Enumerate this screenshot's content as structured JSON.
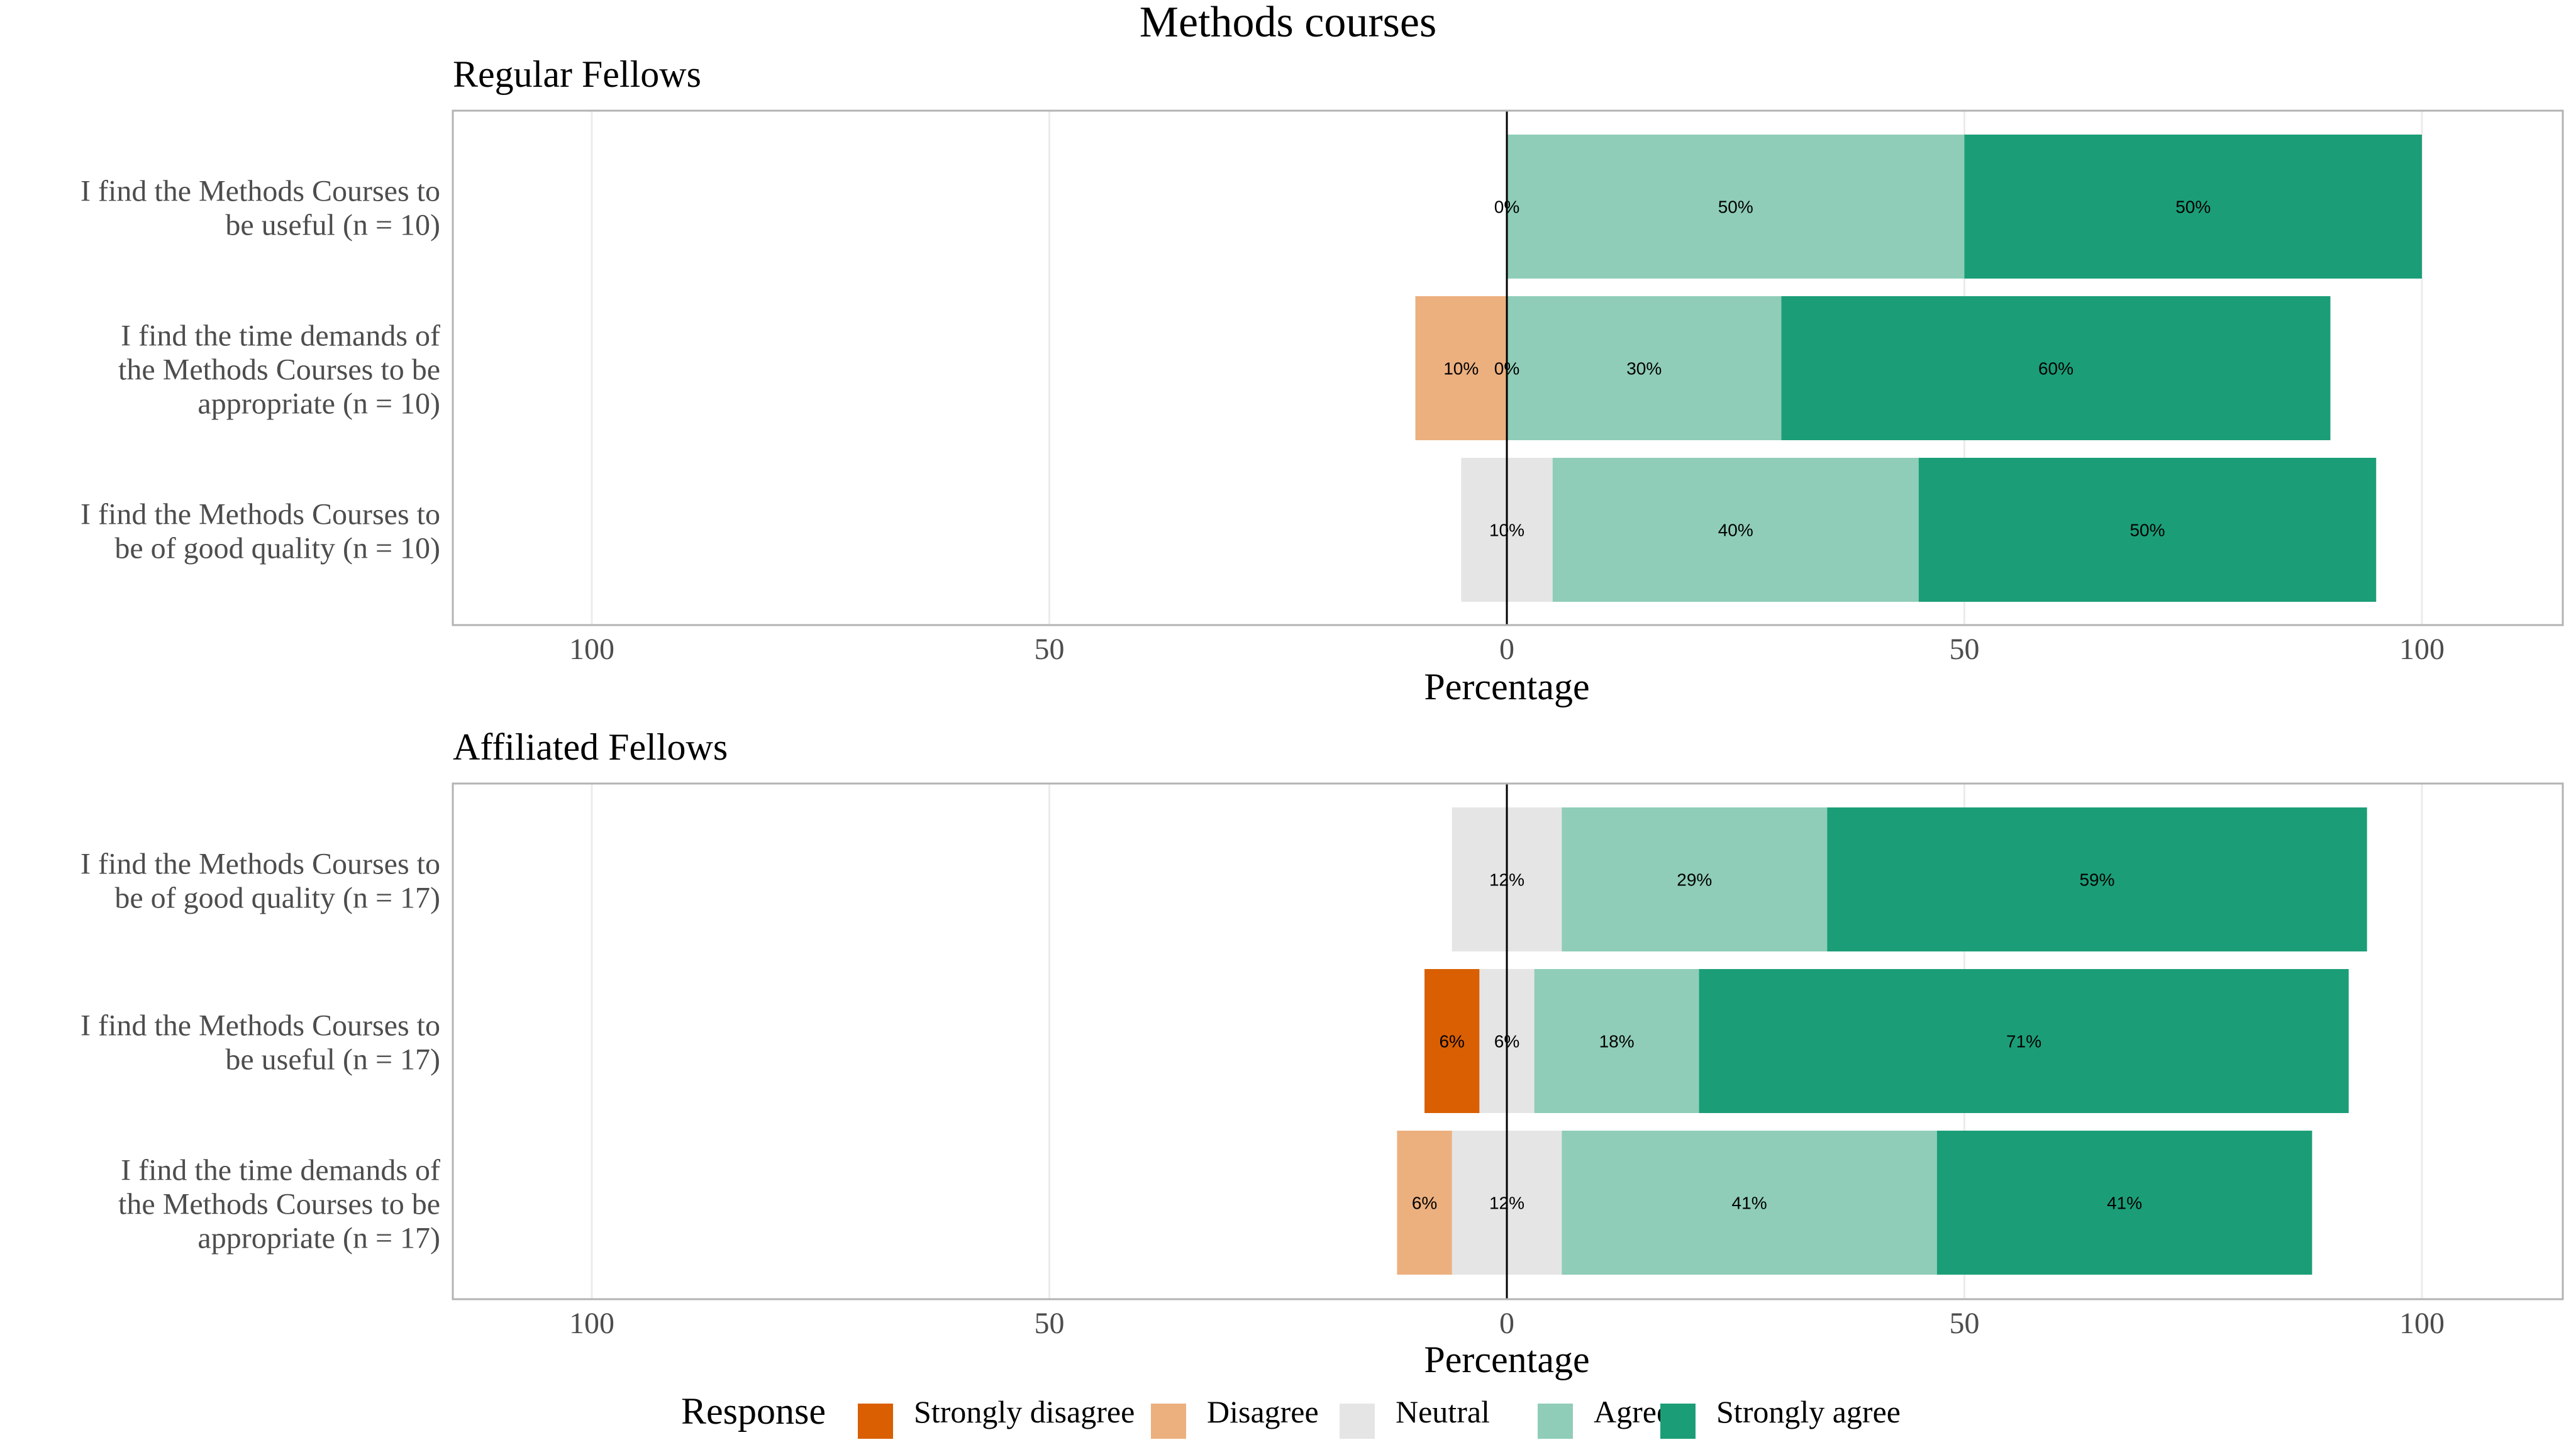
{
  "chart_data": {
    "type": "bar",
    "title": "Methods courses",
    "xlabel": "Percentage",
    "xlim": [
      -100,
      100
    ],
    "x_ticks": [
      {
        "value": -100,
        "label": "100"
      },
      {
        "value": -50,
        "label": "50"
      },
      {
        "value": 0,
        "label": "0"
      },
      {
        "value": 50,
        "label": "50"
      },
      {
        "value": 100,
        "label": "100"
      }
    ],
    "grid": true,
    "orientation": "horizontal-diverging",
    "legend": {
      "title": "Response",
      "position": "bottom",
      "entries": [
        {
          "name": "Strongly disagree",
          "color": "#d95f02"
        },
        {
          "name": "Disagree",
          "color": "#ecb07f"
        },
        {
          "name": "Neutral",
          "color": "#e5e5e5"
        },
        {
          "name": "Agree",
          "color": "#8fcdb8"
        },
        {
          "name": "Strongly agree",
          "color": "#1b9e77"
        }
      ]
    },
    "panels": [
      {
        "title": "Regular Fellows",
        "items": [
          {
            "label": [
              "I find the Methods Courses to",
              "be useful (n = 10)"
            ],
            "values": {
              "Strongly disagree": 0,
              "Disagree": 0,
              "Neutral": 0,
              "Agree": 50,
              "Strongly agree": 50
            },
            "data_labels": [
              {
                "text": "0%",
                "category": "Neutral"
              },
              {
                "text": "50%",
                "category": "Agree"
              },
              {
                "text": "50%",
                "category": "Strongly agree"
              }
            ]
          },
          {
            "label": [
              "I find the time demands of",
              "the Methods Courses to be",
              "appropriate (n = 10)"
            ],
            "values": {
              "Strongly disagree": 0,
              "Disagree": 10,
              "Neutral": 0,
              "Agree": 30,
              "Strongly agree": 60
            },
            "data_labels": [
              {
                "text": "10%",
                "category": "Disagree"
              },
              {
                "text": "0%",
                "category": "Neutral"
              },
              {
                "text": "30%",
                "category": "Agree"
              },
              {
                "text": "60%",
                "category": "Strongly agree"
              }
            ]
          },
          {
            "label": [
              "I find the Methods Courses to",
              "be of good quality (n = 10)"
            ],
            "values": {
              "Strongly disagree": 0,
              "Disagree": 0,
              "Neutral": 10,
              "Agree": 40,
              "Strongly agree": 50
            },
            "data_labels": [
              {
                "text": "10%",
                "category": "Neutral"
              },
              {
                "text": "40%",
                "category": "Agree"
              },
              {
                "text": "50%",
                "category": "Strongly agree"
              }
            ]
          }
        ]
      },
      {
        "title": "Affiliated Fellows",
        "items": [
          {
            "label": [
              "I find the Methods Courses to",
              "be of good quality (n = 17)"
            ],
            "values": {
              "Strongly disagree": 0,
              "Disagree": 0,
              "Neutral": 12,
              "Agree": 29,
              "Strongly agree": 59
            },
            "data_labels": [
              {
                "text": "12%",
                "category": "Neutral"
              },
              {
                "text": "29%",
                "category": "Agree"
              },
              {
                "text": "59%",
                "category": "Strongly agree"
              }
            ]
          },
          {
            "label": [
              "I find the Methods Courses to",
              "be useful (n = 17)"
            ],
            "values": {
              "Strongly disagree": 6,
              "Disagree": 0,
              "Neutral": 6,
              "Agree": 18,
              "Strongly agree": 71
            },
            "data_labels": [
              {
                "text": "6%",
                "category": "Strongly disagree"
              },
              {
                "text": "6%",
                "category": "Neutral"
              },
              {
                "text": "18%",
                "category": "Agree"
              },
              {
                "text": "71%",
                "category": "Strongly agree"
              }
            ]
          },
          {
            "label": [
              "I find the time demands of",
              "the Methods Courses to be",
              "appropriate (n = 17)"
            ],
            "values": {
              "Strongly disagree": 0,
              "Disagree": 6,
              "Neutral": 12,
              "Agree": 41,
              "Strongly agree": 41
            },
            "data_labels": [
              {
                "text": "6%",
                "category": "Disagree"
              },
              {
                "text": "12%",
                "category": "Neutral"
              },
              {
                "text": "41%",
                "category": "Agree"
              },
              {
                "text": "41%",
                "category": "Strongly agree"
              }
            ]
          }
        ]
      }
    ]
  }
}
